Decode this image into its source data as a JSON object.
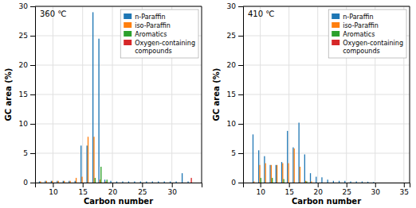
{
  "chart_data": [
    {
      "type": "bar",
      "title": "360 ℃",
      "x": [
        8,
        9,
        10,
        11,
        12,
        13,
        14,
        15,
        16,
        17,
        18,
        19,
        20,
        21,
        22,
        23,
        24,
        25,
        26,
        27,
        28,
        29,
        30,
        31,
        32,
        33
      ],
      "series": [
        {
          "name": "n-Paraffin",
          "values": [
            0.2,
            0.3,
            0.3,
            0.3,
            0.3,
            0.3,
            0.3,
            6.3,
            6.3,
            29.0,
            24.5,
            0.5,
            0.3,
            0.2,
            0.2,
            0.2,
            0.2,
            0.2,
            0.2,
            0.2,
            0.2,
            0.2,
            0.2,
            0.2,
            1.6,
            0.2
          ]
        },
        {
          "name": "iso-Paraffin",
          "values": [
            0.2,
            0.3,
            0.3,
            0.3,
            0.3,
            0.3,
            0.8,
            1.0,
            7.8,
            7.8,
            0.5,
            0.2,
            null,
            null,
            null,
            null,
            null,
            null,
            null,
            null,
            null,
            null,
            null,
            null,
            null,
            null
          ]
        },
        {
          "name": "Aromatics",
          "values": [
            null,
            null,
            null,
            null,
            null,
            null,
            null,
            null,
            null,
            0.8,
            2.7,
            0.5,
            null,
            null,
            null,
            null,
            null,
            null,
            null,
            null,
            null,
            null,
            null,
            null,
            null,
            null
          ]
        },
        {
          "name": "Oxygen-containing\ncompounds",
          "values": [
            null,
            null,
            null,
            null,
            null,
            null,
            null,
            null,
            null,
            null,
            null,
            null,
            null,
            null,
            null,
            null,
            null,
            null,
            null,
            null,
            null,
            null,
            null,
            null,
            null,
            0.8
          ]
        }
      ],
      "xlabel": "Carbon number",
      "ylabel": "GC area (%)",
      "xlim": [
        7,
        35
      ],
      "ylim": [
        0,
        30
      ],
      "xticks": [
        10,
        15,
        20,
        25,
        30
      ],
      "yticks": [
        0,
        5,
        10,
        15,
        20,
        25,
        30
      ],
      "grid": true,
      "legend": "upper right"
    },
    {
      "type": "bar",
      "title": "410 ℃",
      "x": [
        9,
        10,
        11,
        12,
        13,
        14,
        15,
        16,
        17,
        18,
        19,
        20,
        21,
        22,
        23,
        24,
        25,
        26,
        27,
        28,
        29,
        30
      ],
      "series": [
        {
          "name": "n-Paraffin",
          "values": [
            8.2,
            5.5,
            4.5,
            3.0,
            3.0,
            3.5,
            8.8,
            6.0,
            10.2,
            4.8,
            1.6,
            1.0,
            0.9,
            0.5,
            0.3,
            0.3,
            0.3,
            0.2,
            0.2,
            0.2,
            0.15,
            0.1
          ]
        },
        {
          "name": "iso-Paraffin",
          "values": [
            0.2,
            3.0,
            3.3,
            3.0,
            3.0,
            3.3,
            3.3,
            5.8,
            2.7,
            0.3,
            0.2,
            null,
            null,
            null,
            null,
            null,
            null,
            null,
            null,
            null,
            null,
            null
          ]
        },
        {
          "name": "Aromatics",
          "values": [
            null,
            0.8,
            null,
            0.8,
            null,
            0.6,
            null,
            null,
            null,
            0.2,
            null,
            null,
            null,
            null,
            null,
            null,
            null,
            null,
            null,
            null,
            null,
            null
          ]
        },
        {
          "name": "Oxygen-containing\ncompounds",
          "values": [
            null,
            null,
            null,
            null,
            null,
            null,
            null,
            null,
            null,
            null,
            null,
            null,
            null,
            null,
            null,
            null,
            null,
            null,
            null,
            null,
            null,
            null
          ]
        }
      ],
      "xlabel": "Carbon number",
      "ylabel": "GC area (%)",
      "xlim": [
        7,
        36
      ],
      "ylim": [
        0,
        30
      ],
      "xticks": [
        10,
        15,
        20,
        25,
        30,
        35
      ],
      "yticks": [
        0,
        5,
        10,
        15,
        20,
        25,
        30
      ],
      "grid": true,
      "legend": "upper right"
    }
  ]
}
